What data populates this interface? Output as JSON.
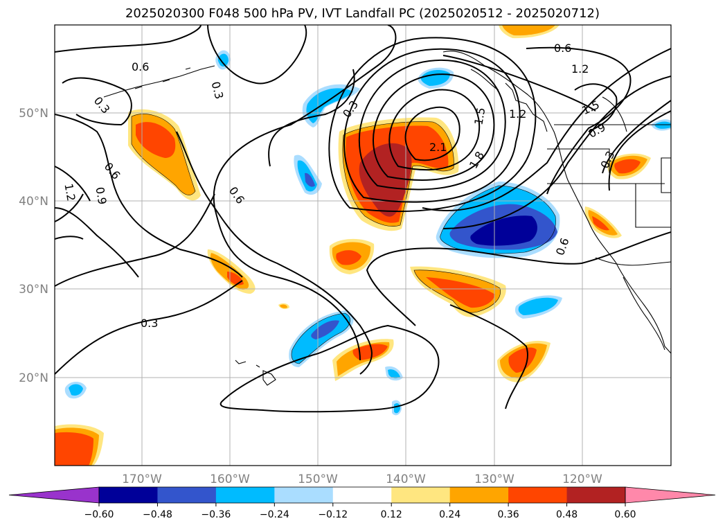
{
  "title": "2025020300 F048 500 hPa PV, IVT Landfall PC (2025020512 - 2025020712)",
  "map": {
    "lon_range": [
      -180,
      -110
    ],
    "lat_range": [
      10,
      60
    ],
    "lon_ticks": [
      {
        "lon": -170,
        "label": "170°W"
      },
      {
        "lon": -160,
        "label": "160°W"
      },
      {
        "lon": -150,
        "label": "150°W"
      },
      {
        "lon": -140,
        "label": "140°W"
      },
      {
        "lon": -130,
        "label": "130°W"
      },
      {
        "lon": -120,
        "label": "120°W"
      }
    ],
    "lat_ticks": [
      {
        "lat": 50,
        "label": "50°N"
      },
      {
        "lat": 40,
        "label": "40°N"
      },
      {
        "lat": 30,
        "label": "30°N"
      },
      {
        "lat": 20,
        "label": "20°N"
      }
    ],
    "grid": true
  },
  "pv_contour_labels": [
    "0.3",
    "0.3",
    "0.3",
    "0.3",
    "0.3",
    "0.6",
    "0.6",
    "0.6",
    "0.6",
    "0.6",
    "0.9",
    "0.9",
    "1.2",
    "1.2",
    "1.2",
    "1.5",
    "1.5",
    "1.8",
    "2.1"
  ],
  "colorbar": {
    "colors": [
      "#9933cc",
      "#000099",
      "#3355cc",
      "#00bbff",
      "#aaddff",
      "#ffffff",
      "#ffe680",
      "#ffa500",
      "#ff4500",
      "#b22222",
      "#ff88aa"
    ],
    "ticks": [
      "−0.60",
      "−0.48",
      "−0.36",
      "−0.24",
      "−0.12",
      "0.12",
      "0.24",
      "0.36",
      "0.48",
      "0.60"
    ]
  }
}
